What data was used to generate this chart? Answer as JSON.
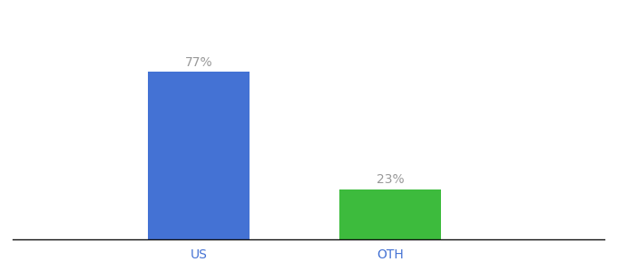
{
  "categories": [
    "US",
    "OTH"
  ],
  "values": [
    77,
    23
  ],
  "bar_colors": [
    "#4472d4",
    "#3dbb3d"
  ],
  "label_texts": [
    "77%",
    "23%"
  ],
  "label_color": "#999999",
  "ylim": [
    0,
    100
  ],
  "bar_width": 0.18,
  "background_color": "#ffffff",
  "tick_label_color": "#4472d4",
  "label_fontsize": 10,
  "tick_fontsize": 10,
  "x_positions": [
    0.33,
    0.67
  ],
  "xlim": [
    0.0,
    1.05
  ]
}
